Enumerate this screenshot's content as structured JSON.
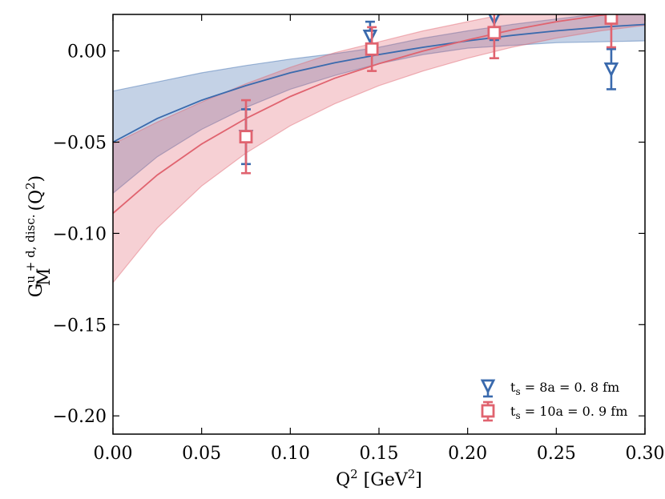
{
  "chart_data": {
    "type": "scatter",
    "title": "",
    "xlabel": "Q",
    "xlabel_sup": "2",
    "xlabel_unit_open": " [GeV",
    "xlabel_unit_sup": "2",
    "xlabel_unit_close": "]",
    "ylabel_main": "G",
    "ylabel_sub": "M",
    "ylabel_sup": "u + d, disc.",
    "ylabel_arg": "(Q",
    "ylabel_arg_sup": "2",
    "ylabel_arg_close": ")",
    "xlim": [
      0.0,
      0.3
    ],
    "ylim": [
      -0.21,
      0.02
    ],
    "xticks": [
      0.0,
      0.05,
      0.1,
      0.15,
      0.2,
      0.25,
      0.3
    ],
    "xtick_labels": [
      "0.00",
      "0.05",
      "0.10",
      "0.15",
      "0.20",
      "0.25",
      "0.30"
    ],
    "yticks": [
      0.0,
      -0.05,
      -0.1,
      -0.15,
      -0.2
    ],
    "ytick_labels": [
      "0.00",
      "−0.05",
      "−0.10",
      "−0.15",
      "−0.20"
    ],
    "grid": false,
    "legend_position": "bottom-right",
    "series": [
      {
        "name": "t_s = 8a = 0.8 fm",
        "legend_main": "t",
        "legend_sub": "s",
        "legend_rest": " = 8a = 0. 8 fm",
        "color": "#3a6aad",
        "marker": "triangle-down",
        "x": [
          0.075,
          0.145,
          0.215,
          0.281
        ],
        "y": [
          -0.047,
          0.008,
          0.018,
          -0.01
        ],
        "yerr": [
          0.015,
          0.008,
          0.012,
          0.011
        ],
        "fit_curve": {
          "x": [
            0.0,
            0.025,
            0.05,
            0.075,
            0.1,
            0.125,
            0.15,
            0.175,
            0.2,
            0.225,
            0.25,
            0.275,
            0.3
          ],
          "y": [
            -0.05,
            -0.037,
            -0.027,
            -0.019,
            -0.012,
            -0.0065,
            -0.002,
            0.002,
            0.0055,
            0.0085,
            0.011,
            0.013,
            0.0145
          ],
          "lower": [
            -0.078,
            -0.058,
            -0.043,
            -0.031,
            -0.021,
            -0.0135,
            -0.007,
            -0.002,
            0.0015,
            0.003,
            0.0045,
            0.005,
            0.0055
          ],
          "upper": [
            -0.022,
            -0.017,
            -0.012,
            -0.008,
            -0.0045,
            -0.0015,
            0.002,
            0.007,
            0.011,
            0.0145,
            0.0175,
            0.0205,
            0.0235
          ]
        }
      },
      {
        "name": "t_s = 10a = 0.9 fm",
        "legend_main": "t",
        "legend_sub": "s",
        "legend_rest": " = 10a = 0. 9 fm",
        "color": "#e0636f",
        "marker": "square",
        "x": [
          0.075,
          0.146,
          0.215,
          0.281
        ],
        "y": [
          -0.047,
          0.001,
          0.01,
          0.018
        ],
        "yerr": [
          0.02,
          0.012,
          0.014,
          0.016
        ],
        "fit_curve": {
          "x": [
            0.0,
            0.025,
            0.05,
            0.075,
            0.1,
            0.125,
            0.15,
            0.175,
            0.2,
            0.225,
            0.25,
            0.275,
            0.3
          ],
          "y": [
            -0.089,
            -0.068,
            -0.051,
            -0.037,
            -0.025,
            -0.015,
            -0.007,
            0.0,
            0.006,
            0.0115,
            0.016,
            0.0195,
            0.022
          ],
          "lower": [
            -0.127,
            -0.097,
            -0.074,
            -0.056,
            -0.041,
            -0.029,
            -0.019,
            -0.011,
            -0.004,
            0.002,
            0.007,
            0.011,
            0.014
          ],
          "upper": [
            -0.051,
            -0.039,
            -0.028,
            -0.018,
            -0.009,
            -0.001,
            0.005,
            0.011,
            0.016,
            0.021,
            0.025,
            0.028,
            0.03
          ]
        }
      }
    ]
  }
}
